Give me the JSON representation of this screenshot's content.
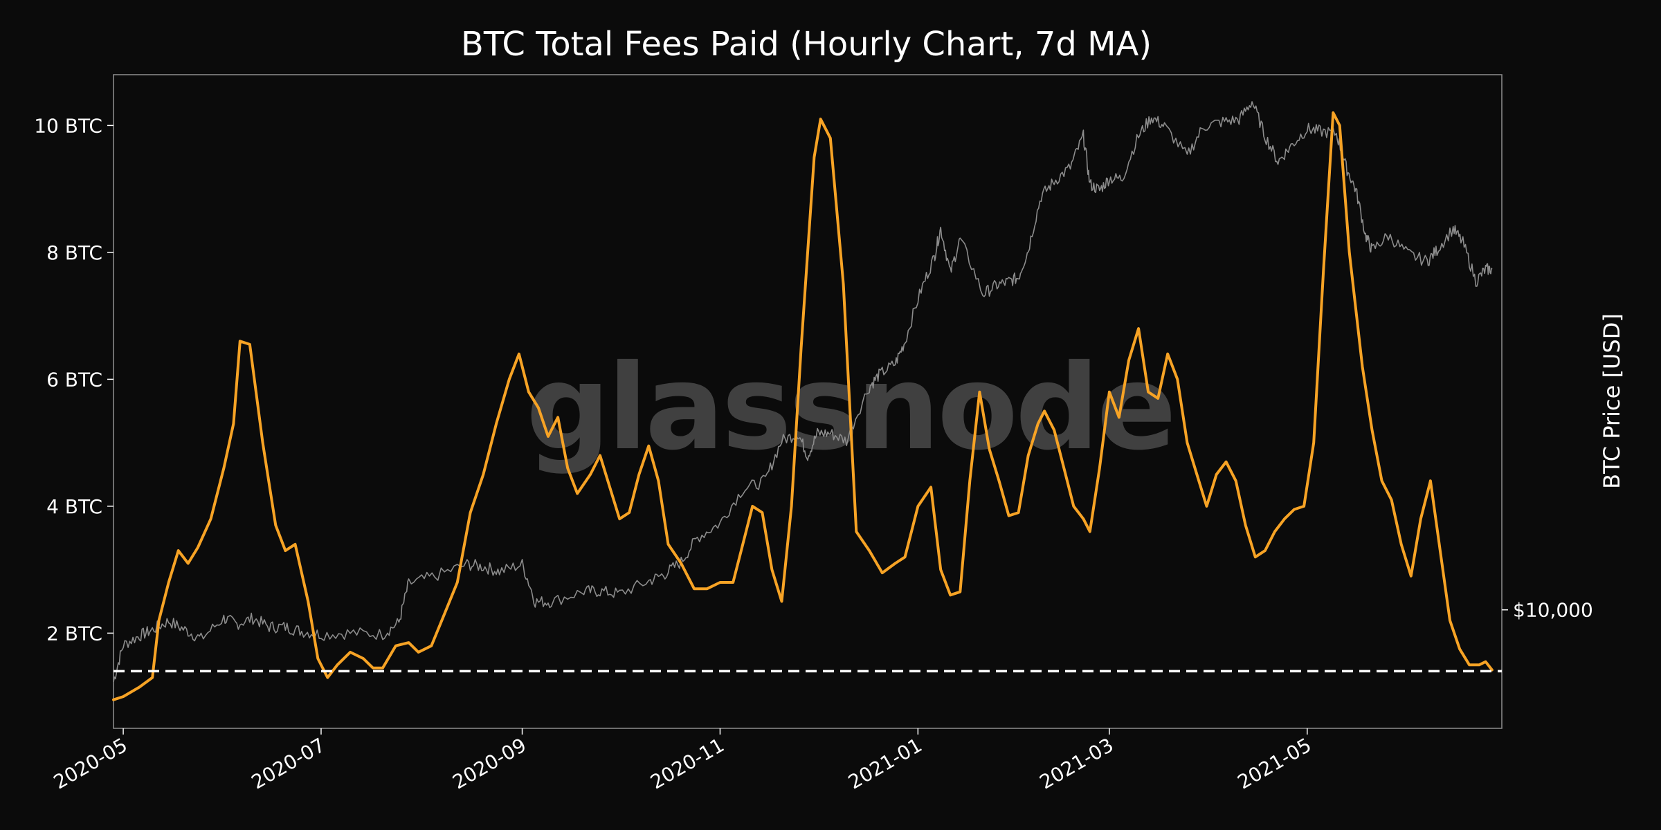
{
  "chart_data": {
    "type": "line",
    "title": "BTC Total Fees Paid (Hourly Chart, 7d MA)",
    "watermark": "glassnode",
    "y_left": {
      "ticks": [
        2,
        4,
        6,
        8,
        10
      ],
      "tick_labels": [
        "2 BTC",
        "4 BTC",
        "6 BTC",
        "8 BTC",
        "10 BTC"
      ],
      "ylim": [
        0.5,
        10.8
      ]
    },
    "y_right": {
      "label": "BTC Price [USD]",
      "ticks": [
        10000
      ],
      "tick_labels": [
        "$10,000"
      ],
      "scale": "log",
      "ylim": [
        6500,
        70000
      ]
    },
    "x_axis": {
      "type": "date",
      "xlim": [
        "2020-04-28",
        "2021-06-30"
      ],
      "ticks": [
        "2020-05-01",
        "2020-07-01",
        "2020-09-01",
        "2020-11-01",
        "2021-01-01",
        "2021-03-01",
        "2021-05-01"
      ],
      "tick_labels": [
        "2020-05",
        "2020-07",
        "2020-09",
        "2020-11",
        "2021-01",
        "2021-03",
        "2021-05"
      ]
    },
    "reference_line": {
      "value": 1.4,
      "style": "dashed",
      "color": "#ffffff"
    },
    "colors": {
      "fees": "#f7a325",
      "price": "#8c8c8c",
      "background": "#0b0b0b",
      "axes_border": "#888888"
    },
    "series": [
      {
        "axis": "left",
        "points": [
          [
            "2020-04-28",
            0.95
          ],
          [
            "2020-05-01",
            1.0
          ],
          [
            "2020-05-06",
            1.15
          ],
          [
            "2020-05-10",
            1.3
          ],
          [
            "2020-05-12",
            2.2
          ],
          [
            "2020-05-15",
            2.8
          ],
          [
            "2020-05-18",
            3.3
          ],
          [
            "2020-05-21",
            3.1
          ],
          [
            "2020-05-24",
            3.35
          ],
          [
            "2020-05-28",
            3.8
          ],
          [
            "2020-06-01",
            4.6
          ],
          [
            "2020-06-04",
            5.3
          ],
          [
            "2020-06-06",
            6.6
          ],
          [
            "2020-06-09",
            6.55
          ],
          [
            "2020-06-13",
            5.0
          ],
          [
            "2020-06-17",
            3.7
          ],
          [
            "2020-06-20",
            3.3
          ],
          [
            "2020-06-23",
            3.4
          ],
          [
            "2020-06-27",
            2.5
          ],
          [
            "2020-06-30",
            1.6
          ],
          [
            "2020-07-03",
            1.3
          ],
          [
            "2020-07-06",
            1.5
          ],
          [
            "2020-07-10",
            1.7
          ],
          [
            "2020-07-14",
            1.6
          ],
          [
            "2020-07-17",
            1.45
          ],
          [
            "2020-07-20",
            1.45
          ],
          [
            "2020-07-24",
            1.8
          ],
          [
            "2020-07-28",
            1.85
          ],
          [
            "2020-07-31",
            1.7
          ],
          [
            "2020-08-04",
            1.8
          ],
          [
            "2020-08-08",
            2.3
          ],
          [
            "2020-08-12",
            2.8
          ],
          [
            "2020-08-16",
            3.9
          ],
          [
            "2020-08-20",
            4.5
          ],
          [
            "2020-08-24",
            5.3
          ],
          [
            "2020-08-28",
            6.0
          ],
          [
            "2020-08-31",
            6.4
          ],
          [
            "2020-09-03",
            5.8
          ],
          [
            "2020-09-06",
            5.55
          ],
          [
            "2020-09-09",
            5.1
          ],
          [
            "2020-09-12",
            5.4
          ],
          [
            "2020-09-15",
            4.6
          ],
          [
            "2020-09-18",
            4.2
          ],
          [
            "2020-09-22",
            4.5
          ],
          [
            "2020-09-25",
            4.8
          ],
          [
            "2020-09-28",
            4.3
          ],
          [
            "2020-10-01",
            3.8
          ],
          [
            "2020-10-04",
            3.9
          ],
          [
            "2020-10-07",
            4.5
          ],
          [
            "2020-10-10",
            4.95
          ],
          [
            "2020-10-13",
            4.4
          ],
          [
            "2020-10-16",
            3.4
          ],
          [
            "2020-10-20",
            3.1
          ],
          [
            "2020-10-24",
            2.7
          ],
          [
            "2020-10-28",
            2.7
          ],
          [
            "2020-11-01",
            2.8
          ],
          [
            "2020-11-05",
            2.8
          ],
          [
            "2020-11-08",
            3.4
          ],
          [
            "2020-11-11",
            4.0
          ],
          [
            "2020-11-14",
            3.9
          ],
          [
            "2020-11-17",
            3.0
          ],
          [
            "2020-11-20",
            2.5
          ],
          [
            "2020-11-23",
            4.0
          ],
          [
            "2020-11-26",
            6.5
          ],
          [
            "2020-11-30",
            9.5
          ],
          [
            "2020-12-02",
            10.1
          ],
          [
            "2020-12-05",
            9.8
          ],
          [
            "2020-12-09",
            7.5
          ],
          [
            "2020-12-13",
            3.6
          ],
          [
            "2020-12-17",
            3.3
          ],
          [
            "2020-12-21",
            2.95
          ],
          [
            "2020-12-25",
            3.1
          ],
          [
            "2020-12-28",
            3.2
          ],
          [
            "2021-01-01",
            4.0
          ],
          [
            "2021-01-05",
            4.3
          ],
          [
            "2021-01-08",
            3.0
          ],
          [
            "2021-01-11",
            2.6
          ],
          [
            "2021-01-14",
            2.65
          ],
          [
            "2021-01-17",
            4.4
          ],
          [
            "2021-01-20",
            5.8
          ],
          [
            "2021-01-23",
            4.9
          ],
          [
            "2021-01-26",
            4.4
          ],
          [
            "2021-01-29",
            3.85
          ],
          [
            "2021-02-01",
            3.9
          ],
          [
            "2021-02-04",
            4.8
          ],
          [
            "2021-02-07",
            5.3
          ],
          [
            "2021-02-09",
            5.5
          ],
          [
            "2021-02-12",
            5.2
          ],
          [
            "2021-02-15",
            4.6
          ],
          [
            "2021-02-18",
            4.0
          ],
          [
            "2021-02-21",
            3.8
          ],
          [
            "2021-02-23",
            3.6
          ],
          [
            "2021-02-26",
            4.6
          ],
          [
            "2021-03-01",
            5.8
          ],
          [
            "2021-03-04",
            5.4
          ],
          [
            "2021-03-07",
            6.3
          ],
          [
            "2021-03-10",
            6.8
          ],
          [
            "2021-03-13",
            5.8
          ],
          [
            "2021-03-16",
            5.7
          ],
          [
            "2021-03-19",
            6.4
          ],
          [
            "2021-03-22",
            6.0
          ],
          [
            "2021-03-25",
            5.0
          ],
          [
            "2021-03-28",
            4.5
          ],
          [
            "2021-03-31",
            4.0
          ],
          [
            "2021-04-03",
            4.5
          ],
          [
            "2021-04-06",
            4.7
          ],
          [
            "2021-04-09",
            4.4
          ],
          [
            "2021-04-12",
            3.7
          ],
          [
            "2021-04-15",
            3.2
          ],
          [
            "2021-04-18",
            3.3
          ],
          [
            "2021-04-21",
            3.6
          ],
          [
            "2021-04-24",
            3.8
          ],
          [
            "2021-04-27",
            3.95
          ],
          [
            "2021-04-30",
            4.0
          ],
          [
            "2021-05-03",
            5.0
          ],
          [
            "2021-05-06",
            7.7
          ],
          [
            "2021-05-09",
            10.2
          ],
          [
            "2021-05-11",
            10.0
          ],
          [
            "2021-05-14",
            8.0
          ],
          [
            "2021-05-18",
            6.2
          ],
          [
            "2021-05-21",
            5.2
          ],
          [
            "2021-05-24",
            4.4
          ],
          [
            "2021-05-27",
            4.1
          ],
          [
            "2021-05-30",
            3.4
          ],
          [
            "2021-06-02",
            2.9
          ],
          [
            "2021-06-05",
            3.8
          ],
          [
            "2021-06-08",
            4.4
          ],
          [
            "2021-06-11",
            3.3
          ],
          [
            "2021-06-14",
            2.2
          ],
          [
            "2021-06-17",
            1.75
          ],
          [
            "2021-06-20",
            1.5
          ],
          [
            "2021-06-23",
            1.5
          ],
          [
            "2021-06-25",
            1.55
          ],
          [
            "2021-06-27",
            1.42
          ]
        ]
      },
      {
        "axis": "right",
        "points": [
          [
            "2020-04-28",
            7700
          ],
          [
            "2020-05-01",
            8800
          ],
          [
            "2020-05-06",
            9100
          ],
          [
            "2020-05-10",
            9300
          ],
          [
            "2020-05-15",
            9600
          ],
          [
            "2020-05-20",
            9300
          ],
          [
            "2020-05-25",
            9000
          ],
          [
            "2020-06-01",
            9700
          ],
          [
            "2020-06-05",
            9500
          ],
          [
            "2020-06-10",
            9700
          ],
          [
            "2020-06-15",
            9400
          ],
          [
            "2020-06-20",
            9400
          ],
          [
            "2020-06-25",
            9250
          ],
          [
            "2020-07-01",
            9150
          ],
          [
            "2020-07-10",
            9200
          ],
          [
            "2020-07-20",
            9150
          ],
          [
            "2020-07-25",
            9550
          ],
          [
            "2020-07-28",
            11000
          ],
          [
            "2020-08-05",
            11300
          ],
          [
            "2020-08-15",
            11800
          ],
          [
            "2020-08-20",
            11700
          ],
          [
            "2020-08-25",
            11500
          ],
          [
            "2020-09-01",
            11800
          ],
          [
            "2020-09-05",
            10300
          ],
          [
            "2020-09-10",
            10300
          ],
          [
            "2020-09-20",
            10700
          ],
          [
            "2020-09-25",
            10700
          ],
          [
            "2020-10-01",
            10600
          ],
          [
            "2020-10-10",
            11100
          ],
          [
            "2020-10-15",
            11400
          ],
          [
            "2020-10-20",
            11900
          ],
          [
            "2020-10-25",
            13000
          ],
          [
            "2020-11-01",
            13700
          ],
          [
            "2020-11-08",
            15500
          ],
          [
            "2020-11-15",
            16000
          ],
          [
            "2020-11-20",
            18500
          ],
          [
            "2020-11-25",
            19000
          ],
          [
            "2020-11-28",
            17500
          ],
          [
            "2020-12-01",
            19000
          ],
          [
            "2020-12-05",
            19000
          ],
          [
            "2020-12-10",
            18500
          ],
          [
            "2020-12-17",
            22500
          ],
          [
            "2020-12-20",
            23500
          ],
          [
            "2020-12-25",
            24500
          ],
          [
            "2020-12-28",
            26500
          ],
          [
            "2021-01-02",
            32000
          ],
          [
            "2021-01-06",
            36000
          ],
          [
            "2021-01-08",
            40000
          ],
          [
            "2021-01-11",
            34000
          ],
          [
            "2021-01-14",
            38500
          ],
          [
            "2021-01-21",
            31500
          ],
          [
            "2021-01-25",
            32500
          ],
          [
            "2021-01-29",
            33000
          ],
          [
            "2021-02-01",
            33500
          ],
          [
            "2021-02-04",
            37000
          ],
          [
            "2021-02-08",
            45000
          ],
          [
            "2021-02-12",
            47500
          ],
          [
            "2021-02-17",
            50000
          ],
          [
            "2021-02-21",
            56000
          ],
          [
            "2021-02-23",
            47000
          ],
          [
            "2021-02-26",
            46000
          ],
          [
            "2021-03-01",
            48000
          ],
          [
            "2021-03-05",
            48000
          ],
          [
            "2021-03-10",
            56000
          ],
          [
            "2021-03-14",
            60000
          ],
          [
            "2021-03-18",
            58000
          ],
          [
            "2021-03-25",
            52000
          ],
          [
            "2021-03-30",
            58000
          ],
          [
            "2021-04-05",
            59000
          ],
          [
            "2021-04-10",
            59500
          ],
          [
            "2021-04-14",
            63500
          ],
          [
            "2021-04-18",
            56000
          ],
          [
            "2021-04-22",
            51000
          ],
          [
            "2021-04-26",
            54000
          ],
          [
            "2021-05-01",
            57500
          ],
          [
            "2021-05-05",
            57000
          ],
          [
            "2021-05-10",
            56500
          ],
          [
            "2021-05-13",
            50000
          ],
          [
            "2021-05-16",
            46000
          ],
          [
            "2021-05-19",
            39000
          ],
          [
            "2021-05-21",
            37000
          ],
          [
            "2021-05-26",
            39000
          ],
          [
            "2021-06-01",
            36500
          ],
          [
            "2021-06-07",
            35500
          ],
          [
            "2021-06-10",
            37000
          ],
          [
            "2021-06-15",
            40000
          ],
          [
            "2021-06-18",
            38000
          ],
          [
            "2021-06-22",
            33000
          ],
          [
            "2021-06-25",
            34500
          ],
          [
            "2021-06-27",
            34500
          ]
        ]
      }
    ]
  }
}
